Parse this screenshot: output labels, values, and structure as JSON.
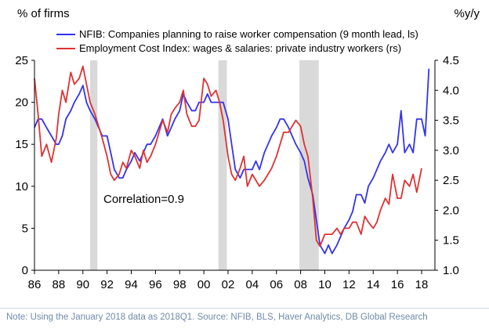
{
  "chart_data": {
    "type": "line",
    "left_axis_title": "% of firms",
    "right_axis_title": "%y/y",
    "x_range": [
      1986,
      2019.1
    ],
    "x_ticks": [
      {
        "value": 1986,
        "label": "86"
      },
      {
        "value": 1988,
        "label": "88"
      },
      {
        "value": 1990,
        "label": "90"
      },
      {
        "value": 1992,
        "label": "92"
      },
      {
        "value": 1994,
        "label": "94"
      },
      {
        "value": 1996,
        "label": "96"
      },
      {
        "value": 1998,
        "label": "98"
      },
      {
        "value": 2000,
        "label": "00"
      },
      {
        "value": 2002,
        "label": "02"
      },
      {
        "value": 2004,
        "label": "04"
      },
      {
        "value": 2006,
        "label": "06"
      },
      {
        "value": 2008,
        "label": "08"
      },
      {
        "value": 2010,
        "label": "10"
      },
      {
        "value": 2012,
        "label": "12"
      },
      {
        "value": 2014,
        "label": "14"
      },
      {
        "value": 2016,
        "label": "16"
      },
      {
        "value": 2018,
        "label": "18"
      }
    ],
    "left_ylim": [
      0,
      25
    ],
    "left_ticks": [
      "0",
      "5",
      "10",
      "15",
      "20",
      "25"
    ],
    "right_ylim": [
      1.0,
      4.5
    ],
    "right_ticks": [
      "1.0",
      "1.5",
      "2.0",
      "2.5",
      "3.0",
      "3.5",
      "4.0",
      "4.5"
    ],
    "recessions": [
      [
        1990.6,
        1991.2
      ],
      [
        2001.2,
        2001.9
      ],
      [
        2007.9,
        2009.5
      ]
    ],
    "annotation": "Correlation=0.9",
    "series": [
      {
        "name": "NFIB: Companies planning to raise worker compensation (9 month lead, ls)",
        "color": "#3333ee",
        "axis": "left",
        "x": [
          1986.0,
          1986.3,
          1986.6,
          1987.0,
          1987.4,
          1987.8,
          1988.0,
          1988.3,
          1988.6,
          1989.0,
          1989.3,
          1989.7,
          1990.0,
          1990.3,
          1990.6,
          1991.0,
          1991.3,
          1991.6,
          1992.0,
          1992.3,
          1992.6,
          1993.0,
          1993.3,
          1993.6,
          1994.0,
          1994.3,
          1994.7,
          1995.0,
          1995.3,
          1995.6,
          1996.0,
          1996.3,
          1996.6,
          1997.0,
          1997.3,
          1997.6,
          1998.0,
          1998.3,
          1998.6,
          1999.0,
          1999.3,
          1999.6,
          2000.0,
          2000.3,
          2000.6,
          2001.0,
          2001.3,
          2001.6,
          2002.0,
          2002.3,
          2002.6,
          2003.0,
          2003.3,
          2003.6,
          2004.0,
          2004.3,
          2004.6,
          2005.0,
          2005.3,
          2005.6,
          2006.0,
          2006.3,
          2006.6,
          2007.0,
          2007.3,
          2007.6,
          2008.0,
          2008.3,
          2008.6,
          2009.0,
          2009.3,
          2009.6,
          2010.0,
          2010.3,
          2010.6,
          2011.0,
          2011.3,
          2011.6,
          2012.0,
          2012.3,
          2012.6,
          2013.0,
          2013.3,
          2013.6,
          2014.0,
          2014.3,
          2014.6,
          2015.0,
          2015.3,
          2015.6,
          2016.0,
          2016.3,
          2016.6,
          2017.0,
          2017.3,
          2017.6,
          2018.0,
          2018.3,
          2018.6
        ],
        "y": [
          17,
          18,
          18,
          17,
          16,
          15,
          15,
          16,
          18,
          19,
          20,
          21,
          22,
          20,
          19,
          18,
          17,
          16,
          16,
          14,
          12,
          11,
          11,
          12,
          13,
          14,
          13,
          14,
          15,
          15,
          16,
          17,
          18,
          16,
          17,
          18,
          19,
          21,
          20,
          19,
          19,
          20,
          20,
          21,
          20,
          20,
          20,
          20,
          18,
          15,
          12,
          11,
          12,
          12,
          12,
          13,
          12,
          14,
          15,
          16,
          17,
          18,
          18,
          17,
          16,
          15,
          14,
          13,
          11,
          9,
          6,
          3,
          2,
          3,
          2,
          3,
          4,
          5,
          6,
          7,
          9,
          9,
          8,
          10,
          11,
          12,
          13,
          14,
          15,
          14,
          15,
          19,
          14,
          15,
          14,
          18,
          18,
          16,
          24
        ]
      },
      {
        "name": "Employment Cost Index: wages & salaries: private industry workers (rs)",
        "color": "#dd3333",
        "axis": "right",
        "x": [
          1986.0,
          1986.3,
          1986.6,
          1987.0,
          1987.4,
          1987.8,
          1988.0,
          1988.3,
          1988.6,
          1989.0,
          1989.3,
          1989.7,
          1990.0,
          1990.3,
          1990.6,
          1991.0,
          1991.3,
          1991.6,
          1992.0,
          1992.3,
          1992.6,
          1993.0,
          1993.3,
          1993.6,
          1994.0,
          1994.3,
          1994.7,
          1995.0,
          1995.3,
          1995.6,
          1996.0,
          1996.3,
          1996.6,
          1997.0,
          1997.3,
          1997.6,
          1998.0,
          1998.3,
          1998.6,
          1999.0,
          1999.3,
          1999.6,
          2000.0,
          2000.3,
          2000.6,
          2001.0,
          2001.3,
          2001.6,
          2002.0,
          2002.3,
          2002.6,
          2003.0,
          2003.3,
          2003.6,
          2004.0,
          2004.3,
          2004.6,
          2005.0,
          2005.3,
          2005.6,
          2006.0,
          2006.3,
          2006.6,
          2007.0,
          2007.3,
          2007.6,
          2008.0,
          2008.3,
          2008.6,
          2009.0,
          2009.3,
          2009.6,
          2010.0,
          2010.3,
          2010.6,
          2011.0,
          2011.3,
          2011.6,
          2012.0,
          2012.3,
          2012.6,
          2013.0,
          2013.3,
          2013.6,
          2014.0,
          2014.3,
          2014.6,
          2015.0,
          2015.3,
          2015.6,
          2016.0,
          2016.3,
          2016.6,
          2017.0,
          2017.3,
          2017.6,
          2018.0
        ],
        "y": [
          4.2,
          3.6,
          2.9,
          3.1,
          2.8,
          3.2,
          3.6,
          4.0,
          3.8,
          4.3,
          4.1,
          4.2,
          4.4,
          4.1,
          3.8,
          3.6,
          3.4,
          3.2,
          2.9,
          2.6,
          2.5,
          2.6,
          2.8,
          2.7,
          3.0,
          2.9,
          2.7,
          3.0,
          2.8,
          2.9,
          3.1,
          3.3,
          3.5,
          3.3,
          3.6,
          3.7,
          3.8,
          4.0,
          3.6,
          3.4,
          3.4,
          3.5,
          4.2,
          4.1,
          3.9,
          4.0,
          3.8,
          3.5,
          2.9,
          2.6,
          2.5,
          2.7,
          2.9,
          2.4,
          2.6,
          2.5,
          2.4,
          2.5,
          2.6,
          2.7,
          2.9,
          3.1,
          3.3,
          3.3,
          3.4,
          3.5,
          3.4,
          3.1,
          2.9,
          2.2,
          1.5,
          1.4,
          1.6,
          1.6,
          1.6,
          1.7,
          1.6,
          1.7,
          1.7,
          1.8,
          1.8,
          1.6,
          1.9,
          1.8,
          1.7,
          1.8,
          2.0,
          2.2,
          2.1,
          2.6,
          2.2,
          2.2,
          2.5,
          2.4,
          2.6,
          2.3,
          2.7
        ]
      }
    ]
  },
  "footnote": "Note: Using the January 2018 data as 2018Q1. Source: NFIB, BLS, Haver Analytics, DB Global Research"
}
